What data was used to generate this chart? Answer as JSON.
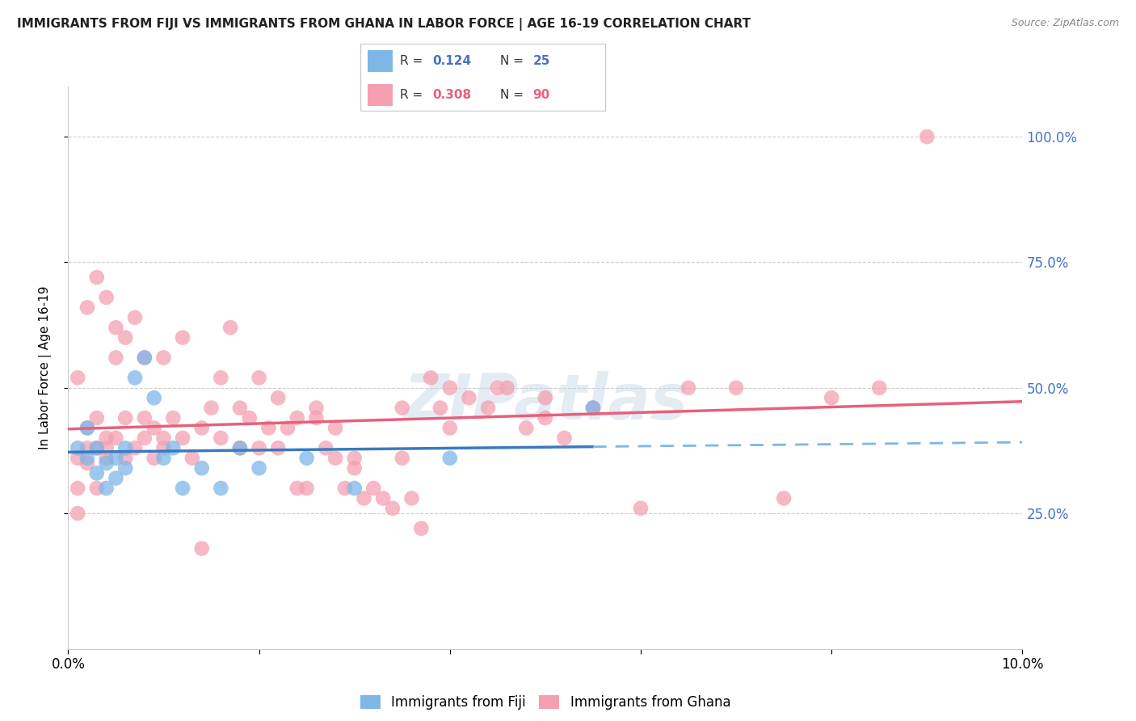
{
  "title": "IMMIGRANTS FROM FIJI VS IMMIGRANTS FROM GHANA IN LABOR FORCE | AGE 16-19 CORRELATION CHART",
  "source": "Source: ZipAtlas.com",
  "ylabel": "In Labor Force | Age 16-19",
  "xlim": [
    0.0,
    0.1
  ],
  "ylim": [
    -0.02,
    1.1
  ],
  "yticks": [
    0.25,
    0.5,
    0.75,
    1.0
  ],
  "yticklabels": [
    "25.0%",
    "50.0%",
    "75.0%",
    "100.0%"
  ],
  "xticks": [
    0.0,
    0.02,
    0.04,
    0.06,
    0.08,
    0.1
  ],
  "xticklabels": [
    "0.0%",
    "",
    "",
    "",
    "",
    "10.0%"
  ],
  "fiji_color": "#7eb6e8",
  "ghana_color": "#f4a0b0",
  "fiji_R": 0.124,
  "fiji_N": 25,
  "ghana_R": 0.308,
  "ghana_N": 90,
  "watermark": "ZIPatlas",
  "fiji_x": [
    0.001,
    0.002,
    0.002,
    0.003,
    0.003,
    0.004,
    0.004,
    0.005,
    0.005,
    0.006,
    0.006,
    0.007,
    0.008,
    0.009,
    0.01,
    0.011,
    0.012,
    0.014,
    0.016,
    0.018,
    0.02,
    0.025,
    0.03,
    0.04,
    0.055
  ],
  "fiji_y": [
    0.38,
    0.42,
    0.36,
    0.33,
    0.38,
    0.35,
    0.3,
    0.36,
    0.32,
    0.34,
    0.38,
    0.52,
    0.56,
    0.48,
    0.36,
    0.38,
    0.3,
    0.34,
    0.3,
    0.38,
    0.34,
    0.36,
    0.3,
    0.36,
    0.46
  ],
  "ghana_x": [
    0.001,
    0.001,
    0.001,
    0.002,
    0.002,
    0.002,
    0.003,
    0.003,
    0.003,
    0.004,
    0.004,
    0.004,
    0.005,
    0.005,
    0.006,
    0.006,
    0.007,
    0.007,
    0.008,
    0.008,
    0.009,
    0.009,
    0.01,
    0.01,
    0.011,
    0.012,
    0.013,
    0.014,
    0.015,
    0.016,
    0.017,
    0.018,
    0.019,
    0.02,
    0.021,
    0.022,
    0.023,
    0.024,
    0.025,
    0.026,
    0.027,
    0.028,
    0.029,
    0.03,
    0.031,
    0.032,
    0.033,
    0.034,
    0.035,
    0.036,
    0.037,
    0.038,
    0.039,
    0.04,
    0.042,
    0.044,
    0.046,
    0.048,
    0.05,
    0.052,
    0.001,
    0.002,
    0.003,
    0.004,
    0.005,
    0.006,
    0.008,
    0.01,
    0.012,
    0.014,
    0.016,
    0.018,
    0.02,
    0.022,
    0.024,
    0.026,
    0.028,
    0.03,
    0.035,
    0.04,
    0.045,
    0.05,
    0.055,
    0.06,
    0.065,
    0.07,
    0.075,
    0.08,
    0.085,
    0.09
  ],
  "ghana_y": [
    0.36,
    0.3,
    0.25,
    0.38,
    0.42,
    0.35,
    0.38,
    0.44,
    0.3,
    0.4,
    0.36,
    0.38,
    0.62,
    0.4,
    0.44,
    0.36,
    0.64,
    0.38,
    0.44,
    0.4,
    0.36,
    0.42,
    0.4,
    0.38,
    0.44,
    0.4,
    0.36,
    0.42,
    0.46,
    0.4,
    0.62,
    0.38,
    0.44,
    0.38,
    0.42,
    0.38,
    0.42,
    0.3,
    0.3,
    0.44,
    0.38,
    0.36,
    0.3,
    0.36,
    0.28,
    0.3,
    0.28,
    0.26,
    0.36,
    0.28,
    0.22,
    0.52,
    0.46,
    0.42,
    0.48,
    0.46,
    0.5,
    0.42,
    0.44,
    0.4,
    0.52,
    0.66,
    0.72,
    0.68,
    0.56,
    0.6,
    0.56,
    0.56,
    0.6,
    0.18,
    0.52,
    0.46,
    0.52,
    0.48,
    0.44,
    0.46,
    0.42,
    0.34,
    0.46,
    0.5,
    0.5,
    0.48,
    0.46,
    0.26,
    0.5,
    0.5,
    0.28,
    0.48,
    0.5,
    1.0
  ]
}
